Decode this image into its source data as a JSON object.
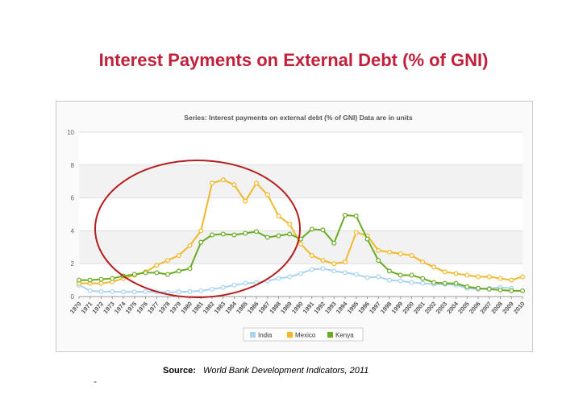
{
  "slide": {
    "title": "Interest Payments on External Debt (% of GNI)",
    "source_label": "Source:",
    "source_text": "World Bank Development Indicators, 2011",
    "dash": "-"
  },
  "colors": {
    "title": "#c0203a",
    "India": "#a9d3f0",
    "Mexico": "#f2b82b",
    "Kenya": "#6aab25",
    "circle": "#b51d1d"
  },
  "chart_data": {
    "type": "line",
    "title": "Series: Interest payments on external debt (% of GNI)   Data are in units",
    "xlabel": "",
    "ylabel": "",
    "ylim": [
      0,
      10
    ],
    "yticks": [
      0,
      2,
      4,
      6,
      8,
      10
    ],
    "grid": true,
    "legend_position": "bottom",
    "x": [
      "1970",
      "1971",
      "1972",
      "1973",
      "1974",
      "1975",
      "1976",
      "1977",
      "1978",
      "1979",
      "1980",
      "1981",
      "1982",
      "1983",
      "1984",
      "1985",
      "1986",
      "1987",
      "1988",
      "1989",
      "1990",
      "1991",
      "1992",
      "1993",
      "1994",
      "1995",
      "1996",
      "1997",
      "1998",
      "1999",
      "2000",
      "2001",
      "2002",
      "2003",
      "2004",
      "2005",
      "2006",
      "2007",
      "2008",
      "2009",
      "2010"
    ],
    "series": [
      {
        "name": "India",
        "values": [
          0.7,
          0.35,
          0.3,
          0.3,
          0.28,
          0.28,
          0.3,
          0.28,
          0.25,
          0.28,
          0.3,
          0.35,
          0.45,
          0.55,
          0.7,
          0.8,
          0.85,
          0.95,
          1.1,
          1.2,
          1.4,
          1.65,
          1.7,
          1.55,
          1.45,
          1.35,
          1.15,
          1.2,
          1.0,
          0.95,
          0.85,
          0.8,
          0.75,
          0.75,
          0.7,
          0.5,
          0.45,
          0.5,
          0.55,
          0.5,
          null
        ]
      },
      {
        "name": "Mexico",
        "values": [
          0.8,
          0.8,
          0.8,
          0.9,
          1.1,
          1.3,
          1.5,
          1.9,
          2.2,
          2.5,
          3.1,
          4.0,
          6.9,
          7.1,
          6.8,
          5.8,
          6.9,
          6.2,
          4.9,
          4.4,
          3.2,
          2.5,
          2.2,
          2.0,
          2.1,
          3.9,
          3.7,
          2.8,
          2.7,
          2.6,
          2.5,
          2.1,
          1.8,
          1.5,
          1.4,
          1.3,
          1.2,
          1.2,
          1.1,
          1.0,
          1.2
        ]
      },
      {
        "name": "Kenya",
        "values": [
          1.0,
          1.0,
          1.05,
          1.1,
          1.25,
          1.35,
          1.45,
          1.45,
          1.35,
          1.55,
          1.7,
          3.3,
          3.75,
          3.8,
          3.75,
          3.85,
          3.95,
          3.6,
          3.7,
          3.8,
          3.5,
          4.1,
          4.05,
          3.25,
          4.95,
          4.9,
          3.5,
          2.2,
          1.55,
          1.3,
          1.3,
          1.1,
          0.85,
          0.8,
          0.8,
          0.6,
          0.5,
          0.45,
          0.4,
          0.35,
          0.35
        ]
      }
    ]
  }
}
